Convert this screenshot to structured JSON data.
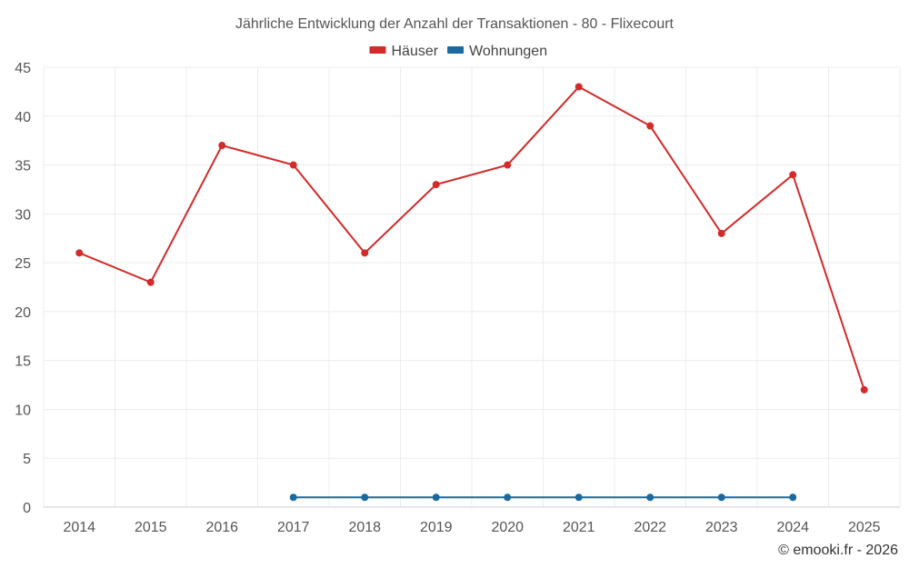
{
  "chart_data": {
    "type": "line",
    "title": "Jährliche Entwicklung der Anzahl der Transaktionen - 80 - Flixecourt",
    "xlabel": "",
    "ylabel": "",
    "categories": [
      "2014",
      "2015",
      "2016",
      "2017",
      "2018",
      "2019",
      "2020",
      "2021",
      "2022",
      "2023",
      "2024",
      "2025"
    ],
    "ylim": [
      0,
      45
    ],
    "yticks": [
      0,
      5,
      10,
      15,
      20,
      25,
      30,
      35,
      40,
      45
    ],
    "grid": true,
    "legend_position": "top-center",
    "series": [
      {
        "name": "Häuser",
        "color": "#d32a2a",
        "values": [
          26,
          23,
          37,
          35,
          26,
          33,
          35,
          43,
          39,
          28,
          34,
          12
        ]
      },
      {
        "name": "Wohnungen",
        "color": "#1a6aa0",
        "values": [
          null,
          null,
          null,
          1,
          1,
          1,
          1,
          1,
          1,
          1,
          1,
          null
        ]
      }
    ]
  },
  "credit": "© emooki.fr - 2026"
}
